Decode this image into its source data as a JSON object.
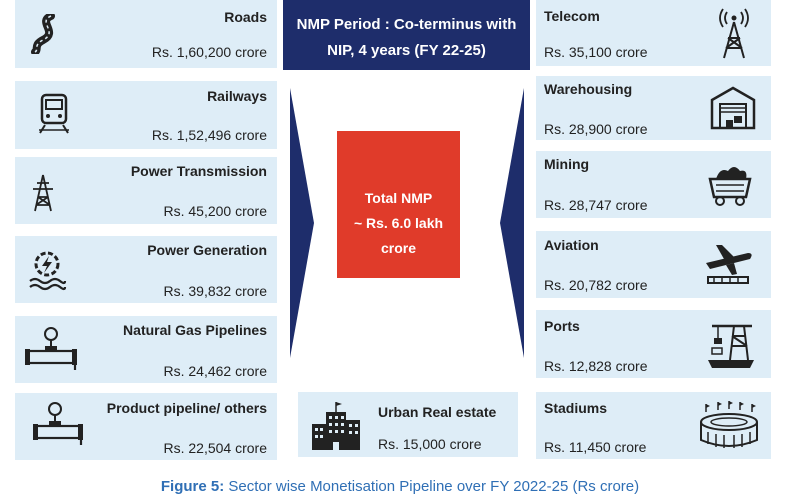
{
  "header": {
    "line1": "NMP Period : Co-terminus with",
    "line2": "NIP,  4 years (FY 22-25)"
  },
  "total": {
    "line1": "Total NMP",
    "line2": "~ Rs. 6.0  lakh",
    "line3": "crore"
  },
  "left": [
    {
      "title": "Roads",
      "value": "Rs. 1,60,200 crore",
      "icon": "road-icon"
    },
    {
      "title": "Railways",
      "value": "Rs. 1,52,496 crore",
      "icon": "train-icon"
    },
    {
      "title": "Power Transmission",
      "value": "Rs. 45,200 crore",
      "icon": "transmission-tower-icon"
    },
    {
      "title": "Power Generation",
      "value": "Rs. 39,832 crore",
      "icon": "power-generation-icon"
    },
    {
      "title": "Natural Gas Pipelines",
      "value": "Rs. 24,462 crore",
      "icon": "gas-pipeline-icon"
    },
    {
      "title": "Product pipeline/ others",
      "value": "Rs. 22,504 crore",
      "icon": "product-pipeline-icon"
    }
  ],
  "right": [
    {
      "title": "Telecom",
      "value": "Rs. 35,100 crore",
      "icon": "telecom-tower-icon"
    },
    {
      "title": "Warehousing",
      "value": "Rs. 28,900 crore",
      "icon": "warehouse-icon"
    },
    {
      "title": "Mining",
      "value": "Rs. 28,747 crore",
      "icon": "mining-cart-icon"
    },
    {
      "title": "Aviation",
      "value": "Rs. 20,782 crore",
      "icon": "airplane-icon"
    },
    {
      "title": "Ports",
      "value": "Rs. 12,828 crore",
      "icon": "port-crane-icon"
    },
    {
      "title": "Stadiums",
      "value": "Rs. 11,450 crore",
      "icon": "stadium-icon"
    }
  ],
  "center_bottom": {
    "title": "Urban Real estate",
    "value": "Rs. 15,000 crore",
    "icon": "building-icon"
  },
  "caption": {
    "label": "Figure 5:",
    "text": " Sector wise Monetisation Pipeline over FY 2022-25 (Rs crore)"
  },
  "colors": {
    "card": "#deedf7",
    "header": "#1e2d6b",
    "total": "#e03b2a",
    "arrow": "#1e2d6b",
    "caption": "#2f6fb5"
  }
}
